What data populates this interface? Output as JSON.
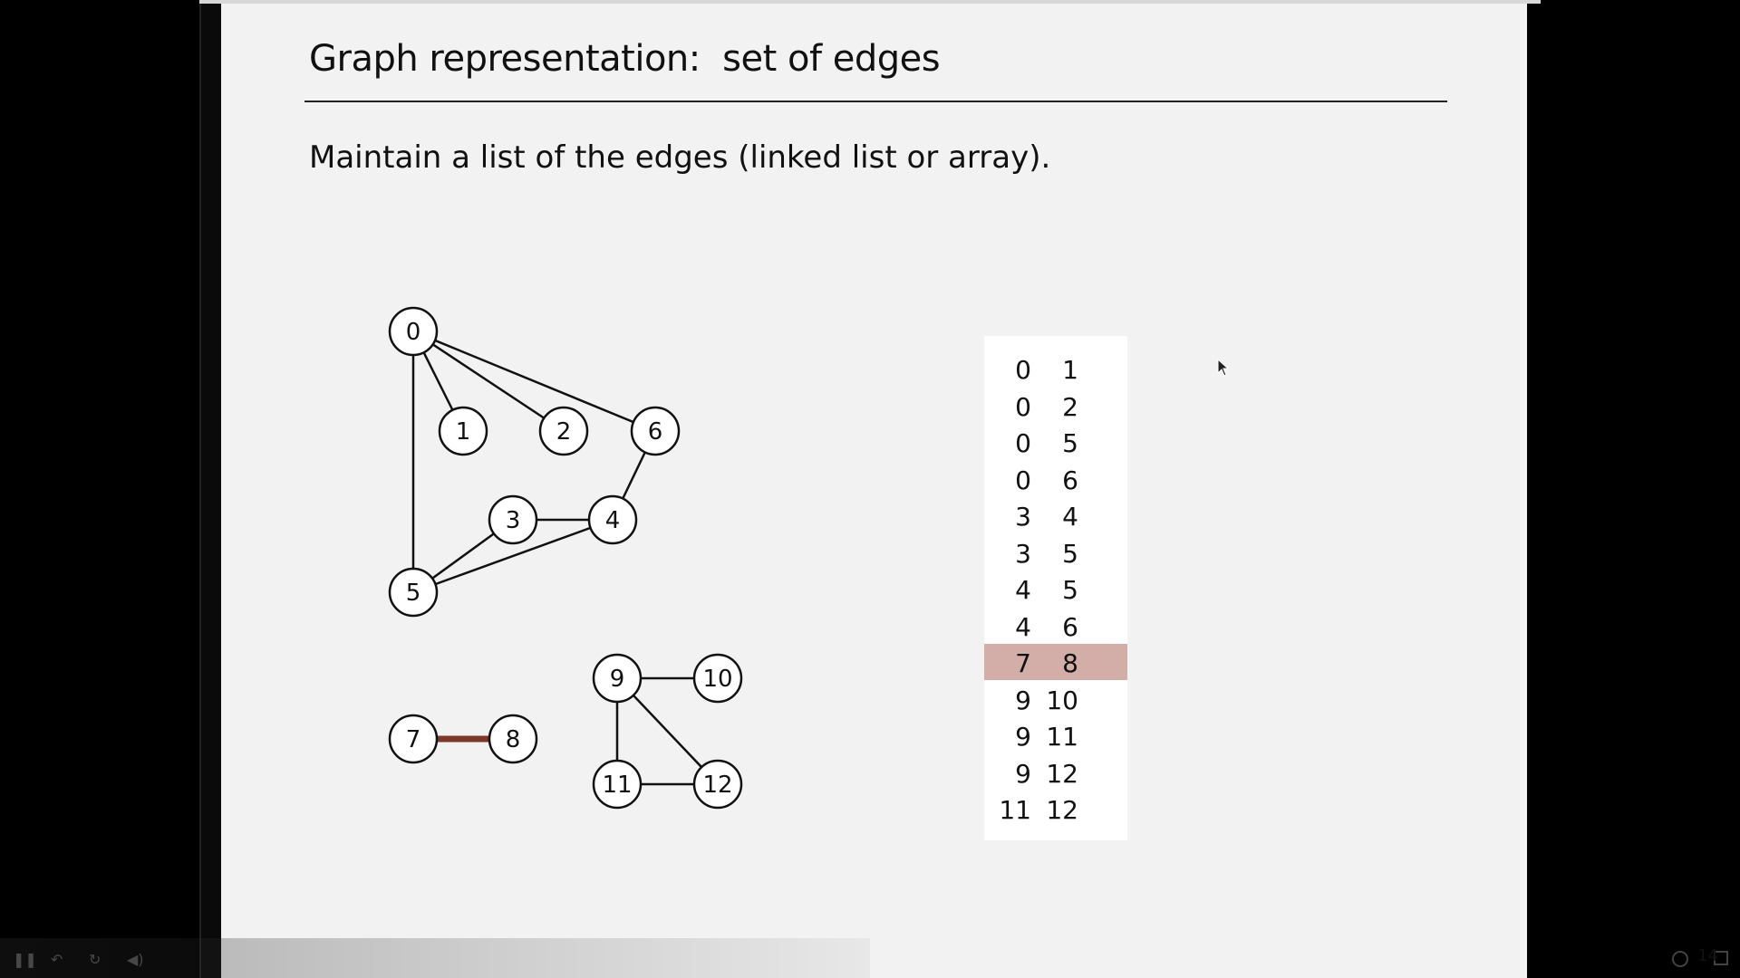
{
  "slide": {
    "title": "Graph representation:  set of edges",
    "body": "Maintain a list of the edges (linked list or array).",
    "page_number": "14"
  },
  "graph": {
    "nodes": [
      {
        "id": "0",
        "label": "0"
      },
      {
        "id": "1",
        "label": "1"
      },
      {
        "id": "2",
        "label": "2"
      },
      {
        "id": "3",
        "label": "3"
      },
      {
        "id": "4",
        "label": "4"
      },
      {
        "id": "5",
        "label": "5"
      },
      {
        "id": "6",
        "label": "6"
      },
      {
        "id": "7",
        "label": "7"
      },
      {
        "id": "8",
        "label": "8"
      },
      {
        "id": "9",
        "label": "9"
      },
      {
        "id": "10",
        "label": "10"
      },
      {
        "id": "11",
        "label": "11"
      },
      {
        "id": "12",
        "label": "12"
      }
    ],
    "edges": [
      {
        "from": "0",
        "to": "1"
      },
      {
        "from": "0",
        "to": "2"
      },
      {
        "from": "0",
        "to": "5"
      },
      {
        "from": "0",
        "to": "6"
      },
      {
        "from": "3",
        "to": "4"
      },
      {
        "from": "3",
        "to": "5"
      },
      {
        "from": "4",
        "to": "5"
      },
      {
        "from": "4",
        "to": "6"
      },
      {
        "from": "7",
        "to": "8",
        "highlight": true
      },
      {
        "from": "9",
        "to": "10"
      },
      {
        "from": "9",
        "to": "11"
      },
      {
        "from": "9",
        "to": "12"
      },
      {
        "from": "11",
        "to": "12"
      }
    ],
    "highlight_color": "#7a3a2a"
  },
  "edge_table": {
    "rows": [
      {
        "a": "0",
        "b": "1"
      },
      {
        "a": "0",
        "b": "2"
      },
      {
        "a": "0",
        "b": "5"
      },
      {
        "a": "0",
        "b": "6"
      },
      {
        "a": "3",
        "b": "4"
      },
      {
        "a": "3",
        "b": "5"
      },
      {
        "a": "4",
        "b": "5"
      },
      {
        "a": "4",
        "b": "6"
      },
      {
        "a": "7",
        "b": "8",
        "highlight": true
      },
      {
        "a": "9",
        "b": "10"
      },
      {
        "a": "9",
        "b": "11"
      },
      {
        "a": "9",
        "b": "12"
      },
      {
        "a": "11",
        "b": "12"
      }
    ],
    "highlight_color": "#d3aea8"
  },
  "player": {
    "controls": [
      "pause-icon",
      "rewind-icon",
      "reload-icon",
      "volume-icon",
      "fullscreen-icon"
    ]
  }
}
